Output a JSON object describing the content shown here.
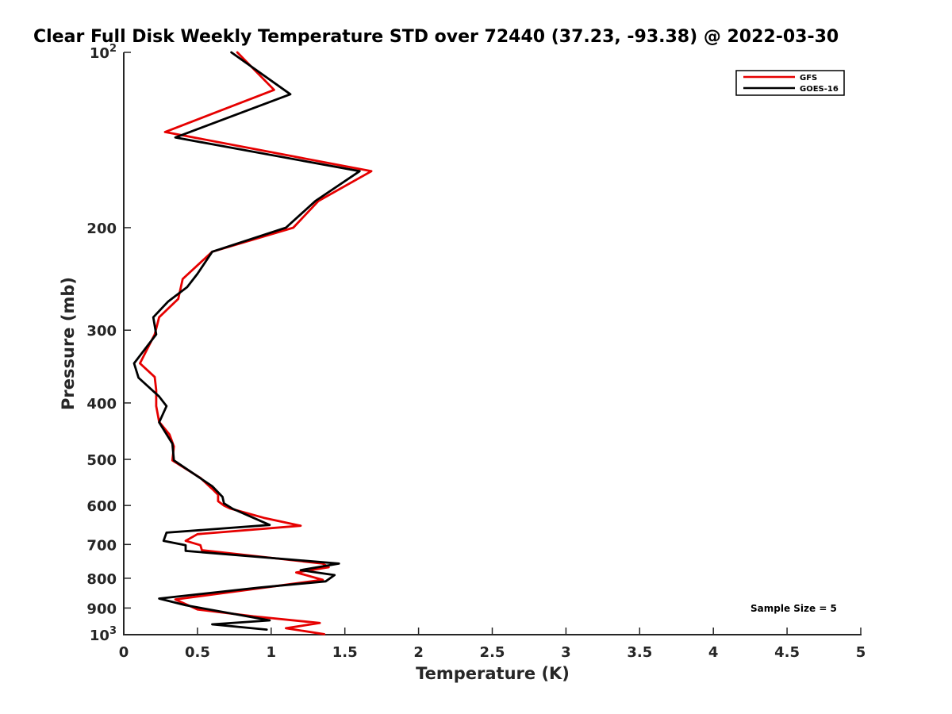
{
  "chart_data": {
    "type": "line",
    "title": "Clear Full Disk Weekly Temperature STD over 72440 (37.23, -93.38) @ 2022-03-30",
    "xlabel": "Temperature (K)",
    "ylabel": "Pressure (mb)",
    "xlim": [
      0,
      5
    ],
    "ylim": [
      100,
      1000
    ],
    "y_scale": "log",
    "y_reversed": true,
    "grid": false,
    "x_ticks": [
      0,
      0.5,
      1,
      1.5,
      2,
      2.5,
      3,
      3.5,
      4,
      4.5,
      5
    ],
    "x_tick_labels": [
      "0",
      "0.5",
      "1",
      "1.5",
      "2",
      "2.5",
      "3",
      "3.5",
      "4",
      "4.5",
      "5"
    ],
    "y_ticks": [
      100,
      200,
      300,
      400,
      500,
      600,
      700,
      800,
      900,
      1000
    ],
    "y_tick_labels": [
      {
        "base": "10",
        "exp": "2"
      },
      {
        "base": "200"
      },
      {
        "base": "300"
      },
      {
        "base": "400"
      },
      {
        "base": "500"
      },
      {
        "base": "600"
      },
      {
        "base": "700"
      },
      {
        "base": "800"
      },
      {
        "base": "900"
      },
      {
        "base": "10",
        "exp": "3"
      }
    ],
    "legend_position": "top-right",
    "series": [
      {
        "name": "GFS",
        "color": "#e60000",
        "points": [
          [
            0.77,
            100
          ],
          [
            1.02,
            116
          ],
          [
            0.28,
            137
          ],
          [
            1.68,
            160
          ],
          [
            1.32,
            180
          ],
          [
            1.15,
            200
          ],
          [
            0.6,
            220
          ],
          [
            0.4,
            245
          ],
          [
            0.37,
            265
          ],
          [
            0.24,
            285
          ],
          [
            0.21,
            305
          ],
          [
            0.11,
            342
          ],
          [
            0.21,
            361
          ],
          [
            0.22,
            380
          ],
          [
            0.22,
            405
          ],
          [
            0.24,
            431
          ],
          [
            0.31,
            453
          ],
          [
            0.34,
            475
          ],
          [
            0.33,
            502
          ],
          [
            0.52,
            538
          ],
          [
            0.6,
            562
          ],
          [
            0.64,
            575
          ],
          [
            0.64,
            590
          ],
          [
            0.68,
            600
          ],
          [
            0.72,
            607
          ],
          [
            0.95,
            630
          ],
          [
            1.2,
            650
          ],
          [
            0.5,
            672
          ],
          [
            0.42,
            690
          ],
          [
            0.52,
            702
          ],
          [
            0.53,
            716
          ],
          [
            1.35,
            755
          ],
          [
            1.39,
            766
          ],
          [
            1.17,
            782
          ],
          [
            1.35,
            805
          ],
          [
            0.35,
            870
          ],
          [
            0.5,
            905
          ],
          [
            0.88,
            930
          ],
          [
            1.33,
            955
          ],
          [
            1.1,
            975
          ],
          [
            1.36,
            998
          ]
        ]
      },
      {
        "name": "GOES-16",
        "color": "#000000",
        "points": [
          [
            0.73,
            100
          ],
          [
            1.13,
            118
          ],
          [
            0.35,
            140
          ],
          [
            1.6,
            160
          ],
          [
            1.3,
            180
          ],
          [
            1.1,
            200
          ],
          [
            0.6,
            220
          ],
          [
            0.5,
            240
          ],
          [
            0.43,
            253
          ],
          [
            0.3,
            268
          ],
          [
            0.2,
            285
          ],
          [
            0.22,
            305
          ],
          [
            0.07,
            342
          ],
          [
            0.1,
            362
          ],
          [
            0.24,
            390
          ],
          [
            0.29,
            405
          ],
          [
            0.24,
            432
          ],
          [
            0.33,
            470
          ],
          [
            0.34,
            502
          ],
          [
            0.6,
            556
          ],
          [
            0.67,
            580
          ],
          [
            0.68,
            595
          ],
          [
            0.74,
            608
          ],
          [
            0.99,
            648
          ],
          [
            0.29,
            668
          ],
          [
            0.27,
            690
          ],
          [
            0.42,
            702
          ],
          [
            0.42,
            718
          ],
          [
            1.46,
            755
          ],
          [
            1.2,
            775
          ],
          [
            1.43,
            790
          ],
          [
            1.37,
            810
          ],
          [
            0.92,
            830
          ],
          [
            0.24,
            867
          ],
          [
            0.42,
            890
          ],
          [
            0.99,
            945
          ],
          [
            0.6,
            960
          ],
          [
            0.97,
            980
          ]
        ]
      }
    ],
    "annotation": "Sample Size = 5"
  }
}
